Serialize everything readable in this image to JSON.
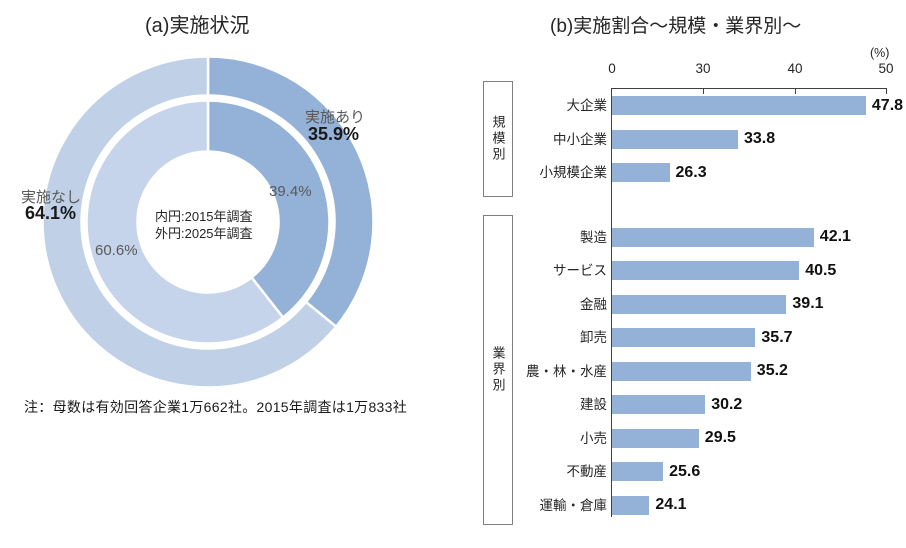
{
  "chart_data": [
    {
      "type": "donut",
      "title": "(a)実施状況",
      "note": "注：母数は有効回答企業1万662社。2015年調査は1万833社",
      "center_note_lines": [
        "内円:2015年調査",
        "外円:2025年調査"
      ],
      "rings": [
        {
          "name": "内円（2015年調査）",
          "position": "inner",
          "segments": [
            {
              "label": "実施あり",
              "value": 39.4
            },
            {
              "label": "実施なし",
              "value": 60.6
            }
          ]
        },
        {
          "name": "外円（2025年調査）",
          "position": "outer",
          "segments": [
            {
              "label": "実施あり",
              "value": 35.9
            },
            {
              "label": "実施なし",
              "value": 64.1
            }
          ]
        }
      ],
      "callouts": {
        "yes_label": "実施あり",
        "yes_outer_value": "35.9%",
        "yes_inner_value": "39.4%",
        "no_label": "実施なし",
        "no_outer_value": "64.1%",
        "no_inner_value": "60.6%"
      },
      "colors": {
        "yes": "#94B1D7",
        "no_outer": "#BFD0E7",
        "no_inner": "#C5D4EA",
        "separator": "#FFFFFF"
      },
      "start_angle": "top, clockwise"
    },
    {
      "type": "bar",
      "orientation": "horizontal",
      "title": "(b)実施割合～規模・業界別～",
      "unit": "(%)",
      "x_tick_labels": [
        "0",
        "30",
        "40",
        "50"
      ],
      "x_axis_effective_range": [
        20,
        50
      ],
      "grid": false,
      "data_labels": true,
      "bar_color": "#94B1D7",
      "groups": [
        {
          "label": "規模別",
          "rows": [
            [
              "大企業",
              47.8
            ],
            [
              "中小企業",
              33.8
            ],
            [
              "小規模企業",
              26.3
            ]
          ]
        },
        {
          "label": "業界別",
          "rows": [
            [
              "製造",
              42.1
            ],
            [
              "サービス",
              40.5
            ],
            [
              "金融",
              39.1
            ],
            [
              "卸売",
              35.7
            ],
            [
              "農・林・水産",
              35.2
            ],
            [
              "建設",
              30.2
            ],
            [
              "小売",
              29.5
            ],
            [
              "不動産",
              25.6
            ],
            [
              "運輸・倉庫",
              24.1
            ]
          ]
        }
      ]
    }
  ]
}
